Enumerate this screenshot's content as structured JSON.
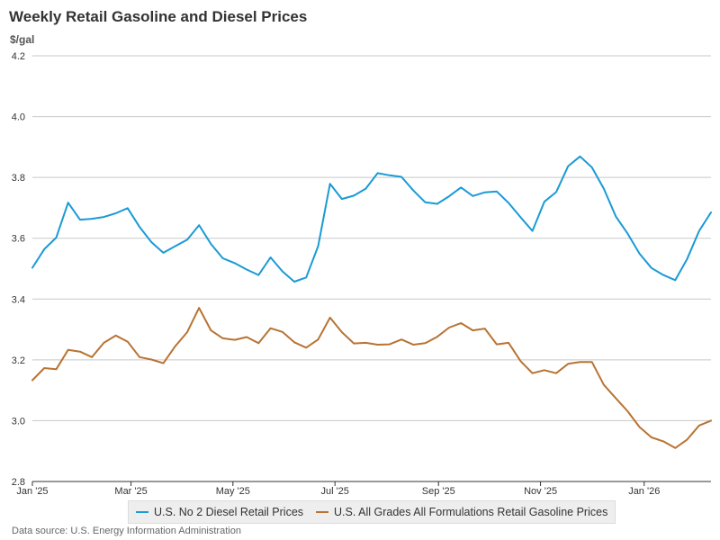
{
  "chart_data": {
    "type": "line",
    "title": "Weekly Retail Gasoline and Diesel Prices",
    "ylabel": "$/gal",
    "xlabel": "",
    "ylim": [
      2.8,
      4.2
    ],
    "yticks": [
      "2.8",
      "3.0",
      "3.2",
      "3.4",
      "3.6",
      "3.8",
      "4.0",
      "4.2"
    ],
    "x_range_weeks": [
      0,
      58
    ],
    "xticks": [
      {
        "label": "Jan '25",
        "week": 0
      },
      {
        "label": "Mar '25",
        "week": 8.43
      },
      {
        "label": "May '25",
        "week": 17.14
      },
      {
        "label": "Jul '25",
        "week": 25.86
      },
      {
        "label": "Sep '25",
        "week": 34.71
      },
      {
        "label": "Nov '25",
        "week": 43.43
      },
      {
        "label": "Jan '26",
        "week": 52.29
      }
    ],
    "grid": true,
    "series": [
      {
        "name": "U.S. No 2 Diesel Retail Prices",
        "color": "#1a9ad6",
        "values": [
          3.503,
          3.564,
          3.602,
          3.717,
          3.661,
          3.664,
          3.67,
          3.682,
          3.699,
          3.637,
          3.587,
          3.552,
          3.574,
          3.595,
          3.643,
          3.581,
          3.534,
          3.518,
          3.497,
          3.479,
          3.537,
          3.491,
          3.457,
          3.471,
          3.574,
          3.779,
          3.729,
          3.74,
          3.763,
          3.814,
          3.807,
          3.802,
          3.757,
          3.718,
          3.713,
          3.738,
          3.767,
          3.739,
          3.751,
          3.754,
          3.716,
          3.669,
          3.624,
          3.72,
          3.752,
          3.837,
          3.869,
          3.833,
          3.763,
          3.672,
          3.615,
          3.549,
          3.502,
          3.479,
          3.462,
          3.532,
          3.624,
          3.685
        ]
      },
      {
        "name": "U.S. All Grades All Formulations Retail Gasoline Prices",
        "color": "#b87333",
        "values": [
          3.133,
          3.173,
          3.169,
          3.233,
          3.227,
          3.209,
          3.256,
          3.28,
          3.26,
          3.209,
          3.201,
          3.189,
          3.245,
          3.291,
          3.371,
          3.297,
          3.271,
          3.266,
          3.275,
          3.255,
          3.304,
          3.292,
          3.258,
          3.24,
          3.267,
          3.339,
          3.291,
          3.254,
          3.256,
          3.25,
          3.251,
          3.267,
          3.25,
          3.255,
          3.276,
          3.306,
          3.321,
          3.297,
          3.303,
          3.251,
          3.256,
          3.196,
          3.156,
          3.166,
          3.156,
          3.187,
          3.193,
          3.193,
          3.118,
          3.074,
          3.031,
          2.979,
          2.945,
          2.932,
          2.91,
          2.938,
          2.984,
          3.0
        ]
      }
    ]
  },
  "source": "Data source: U.S. Energy Information Administration"
}
